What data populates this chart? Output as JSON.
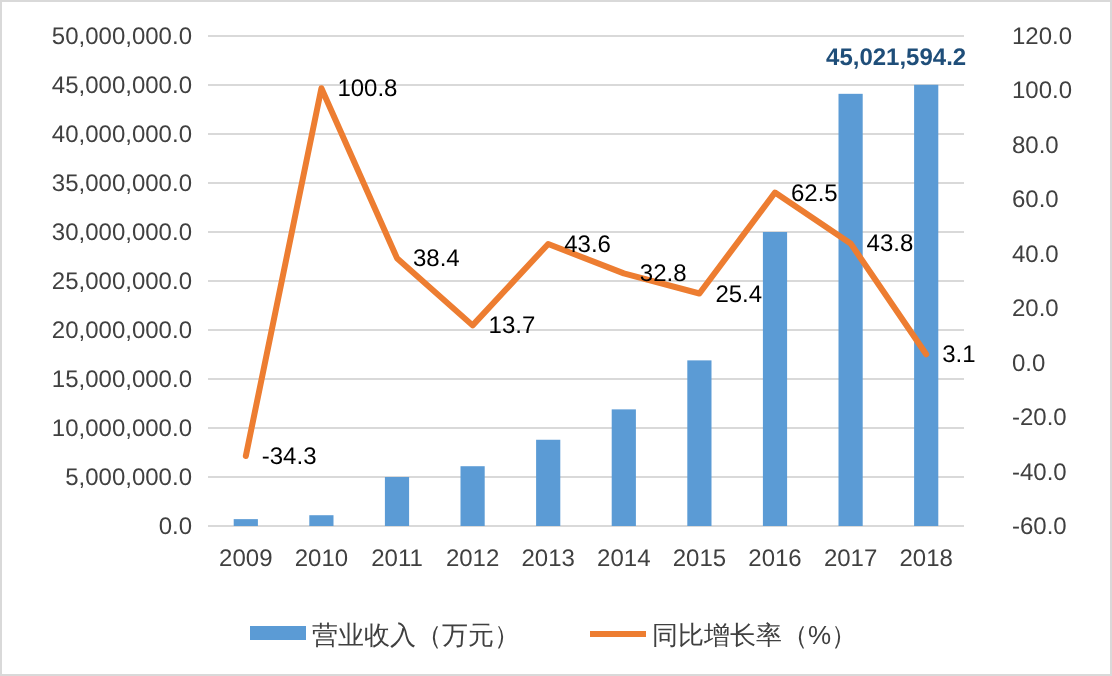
{
  "chart_data": {
    "type": "bar",
    "categories": [
      "2009",
      "2010",
      "2011",
      "2012",
      "2013",
      "2014",
      "2015",
      "2016",
      "2017",
      "2018"
    ],
    "series": [
      {
        "name": "营业收入（万元）",
        "color": "#5b9bd5",
        "values": [
          700000,
          1100000,
          5000000,
          6100000,
          8800000,
          11900000,
          16900000,
          30000000,
          44100000,
          45021594.2
        ],
        "value_labels": [
          null,
          null,
          null,
          null,
          null,
          null,
          null,
          null,
          null,
          "45,021,594.2"
        ]
      },
      {
        "name": "同比增长率（%）",
        "type": "line",
        "axis": "y2",
        "color": "#ed7d31",
        "values": [
          -34.3,
          100.8,
          38.4,
          13.7,
          43.6,
          32.8,
          25.4,
          62.5,
          43.8,
          3.1
        ],
        "value_labels": [
          "-34.3",
          "100.8",
          "38.4",
          "13.7",
          "43.6",
          "32.8",
          "25.4",
          "62.5",
          "43.8",
          "3.1"
        ]
      }
    ],
    "ylim": [
      0,
      50000000
    ],
    "yticks": [
      {
        "value": 0,
        "label": "0.0"
      },
      {
        "value": 5000000,
        "label": "5,000,000.0"
      },
      {
        "value": 10000000,
        "label": "10,000,000.0"
      },
      {
        "value": 15000000,
        "label": "15,000,000.0"
      },
      {
        "value": 20000000,
        "label": "20,000,000.0"
      },
      {
        "value": 25000000,
        "label": "25,000,000.0"
      },
      {
        "value": 30000000,
        "label": "30,000,000.0"
      },
      {
        "value": 35000000,
        "label": "35,000,000.0"
      },
      {
        "value": 40000000,
        "label": "40,000,000.0"
      },
      {
        "value": 45000000,
        "label": "45,000,000.0"
      },
      {
        "value": 50000000,
        "label": "50,000,000.0"
      }
    ],
    "y2lim": [
      -60,
      120
    ],
    "y2ticks": [
      {
        "value": -60,
        "label": "-60.0"
      },
      {
        "value": -40,
        "label": "-40.0"
      },
      {
        "value": -20,
        "label": "-20.0"
      },
      {
        "value": 0,
        "label": "0.0"
      },
      {
        "value": 20,
        "label": "20.0"
      },
      {
        "value": 40,
        "label": "40.0"
      },
      {
        "value": 60,
        "label": "60.0"
      },
      {
        "value": 80,
        "label": "80.0"
      },
      {
        "value": 100,
        "label": "100.0"
      },
      {
        "value": 120,
        "label": "120.0"
      }
    ],
    "grid": "y",
    "legend": "bottom"
  }
}
